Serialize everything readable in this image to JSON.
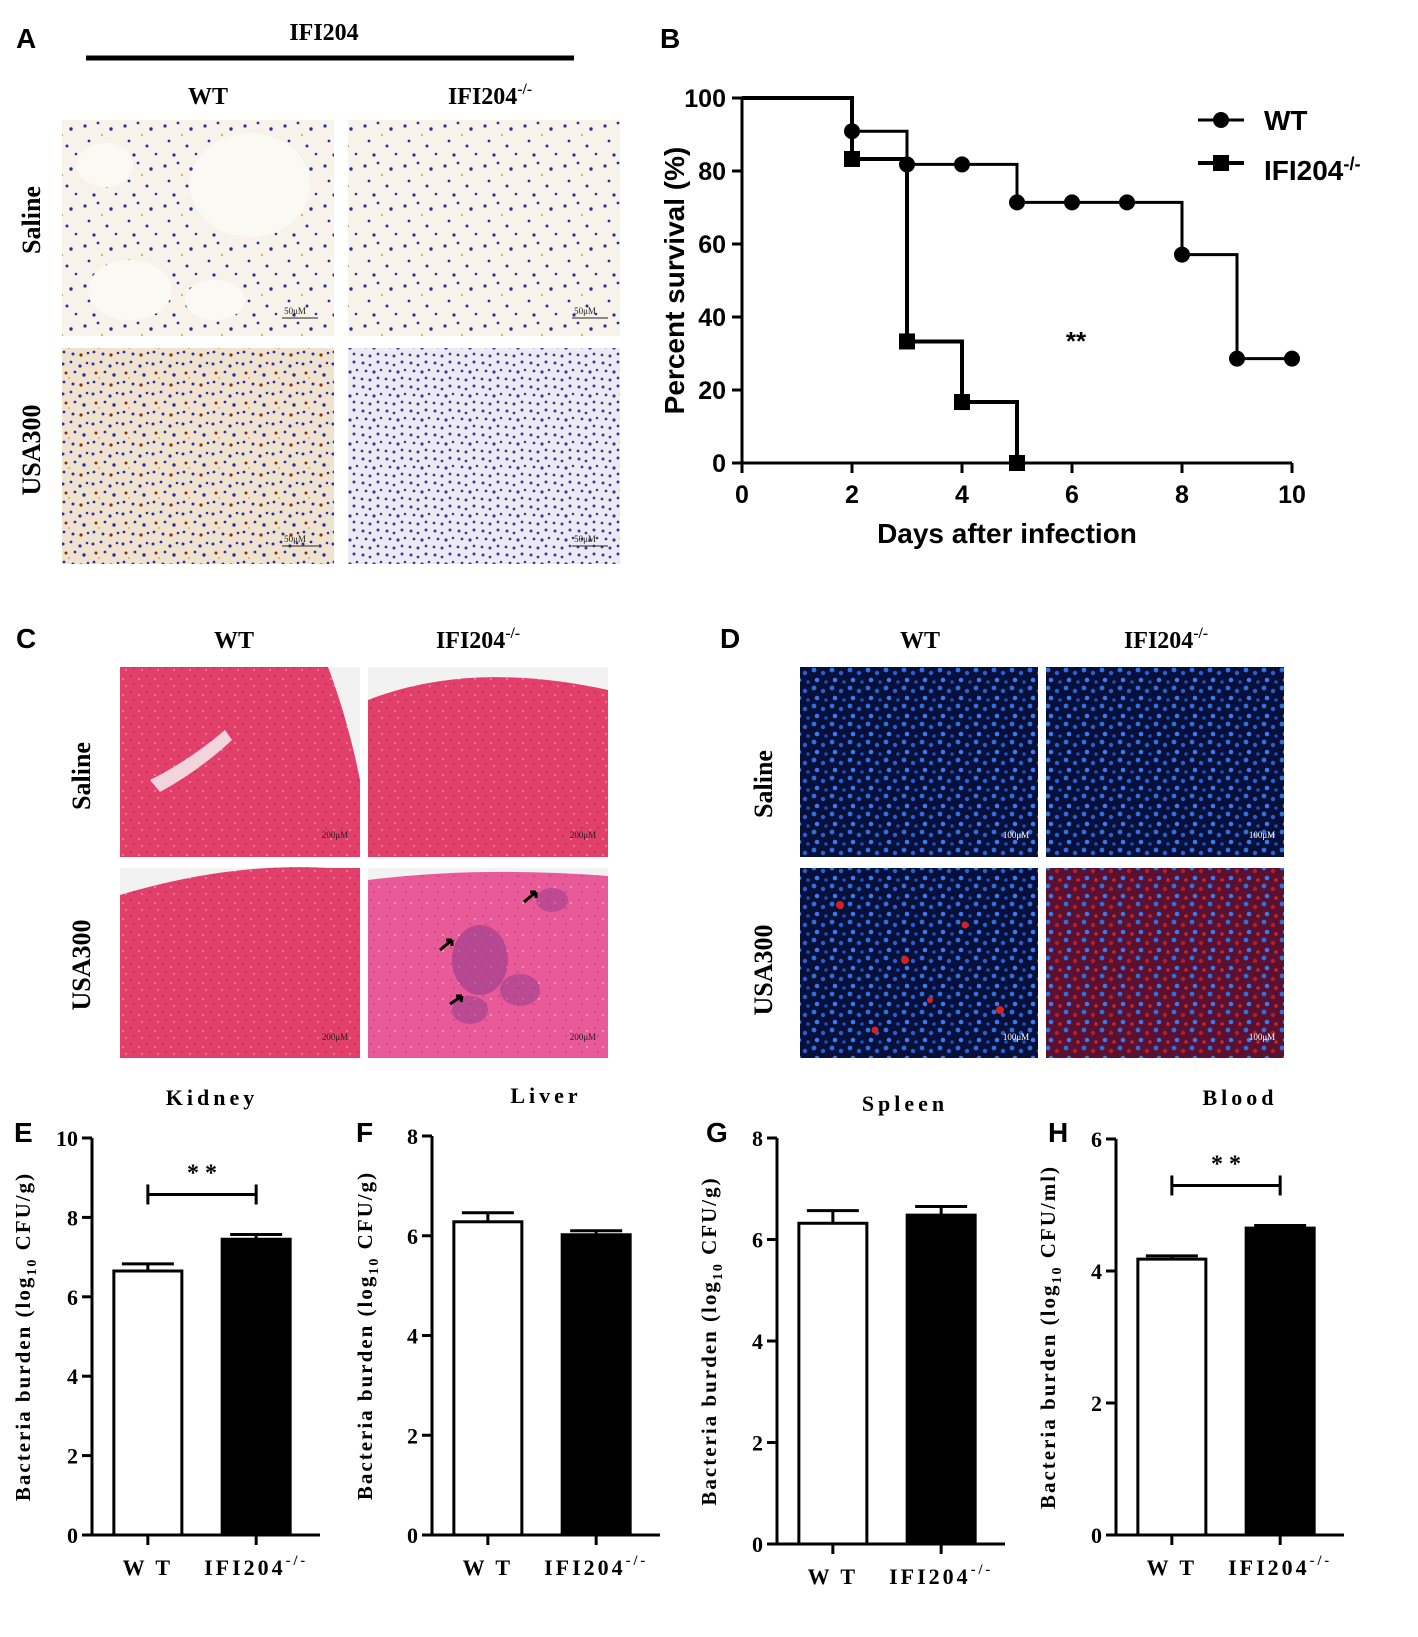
{
  "panels": {
    "A": {
      "letter": "A",
      "header": "IFI204",
      "col_labels": [
        "WT",
        "IFI204-/-"
      ],
      "row_labels": [
        "Saline",
        "USA300"
      ],
      "scale_bar": "50μM"
    },
    "C": {
      "letter": "C",
      "col_labels": [
        "WT",
        "IFI204-/-"
      ],
      "row_labels": [
        "Saline",
        "USA300"
      ],
      "scale_bar": "200μM"
    },
    "D": {
      "letter": "D",
      "col_labels": [
        "WT",
        "IFI204-/-"
      ],
      "row_labels": [
        "Saline",
        "USA300"
      ],
      "scale_bar": "100μM"
    }
  },
  "colors": {
    "ihc_background": "#f5f0e6",
    "ihc_nuclei": "#2b2fa0",
    "ihc_stain": "#8a2a10",
    "he_tissue": "#e2406a",
    "he_lesion": "#8c3a8c",
    "if_background": "#050a2a",
    "if_nuclei": "#2f6fe0",
    "if_signal": "#d8201e"
  },
  "chart_data": [
    {
      "panel": "B",
      "type": "line",
      "step": true,
      "xlabel": "Days after infection",
      "ylabel": "Percent survival (%)",
      "xlim": [
        0,
        10
      ],
      "ylim": [
        0,
        100
      ],
      "xticks": [
        0,
        2,
        4,
        6,
        8,
        10
      ],
      "yticks": [
        0,
        20,
        40,
        60,
        80,
        100
      ],
      "annotation": "**",
      "legend_position": "top-right",
      "series": [
        {
          "name": "WT",
          "marker": "circle",
          "steps": [
            [
              0,
              100
            ],
            [
              2,
              100
            ],
            [
              2,
              90.9
            ],
            [
              3,
              90.9
            ],
            [
              3,
              81.8
            ],
            [
              5,
              81.8
            ],
            [
              5,
              71.4
            ],
            [
              8,
              71.4
            ],
            [
              8,
              57.1
            ],
            [
              9,
              57.1
            ],
            [
              9,
              28.6
            ],
            [
              10,
              28.6
            ]
          ],
          "markers": [
            [
              2,
              90.9
            ],
            [
              3,
              81.8
            ],
            [
              4,
              81.8
            ],
            [
              5,
              71.4
            ],
            [
              6,
              71.4
            ],
            [
              7,
              71.4
            ],
            [
              8,
              57.1
            ],
            [
              9,
              28.6
            ],
            [
              10,
              28.6
            ]
          ]
        },
        {
          "name": "IFI204-/-",
          "marker": "square",
          "steps": [
            [
              0,
              100
            ],
            [
              2,
              100
            ],
            [
              2,
              83.3
            ],
            [
              3,
              83.3
            ],
            [
              3,
              33.3
            ],
            [
              4,
              33.3
            ],
            [
              4,
              16.7
            ],
            [
              5,
              16.7
            ],
            [
              5,
              0
            ]
          ],
          "markers": [
            [
              2,
              83.3
            ],
            [
              3,
              33.3
            ],
            [
              4,
              16.7
            ],
            [
              5,
              0
            ]
          ]
        }
      ]
    },
    {
      "panel": "E",
      "type": "bar",
      "title": "Kidney",
      "ylabel": "Bacteria burden (log10 CFU/g)",
      "categories": [
        "W T",
        "IFI204-/-"
      ],
      "values": [
        6.65,
        7.45
      ],
      "errors": [
        0.18,
        0.12
      ],
      "fills": [
        "#ffffff",
        "#000000"
      ],
      "ylim": [
        0,
        10
      ],
      "yticks": [
        0,
        2,
        4,
        6,
        8,
        10
      ],
      "significance": "* *"
    },
    {
      "panel": "F",
      "type": "bar",
      "title": "Liver",
      "ylabel": "Bacteria burden (log10 CFU/g)",
      "categories": [
        "W T",
        "IFI204-/-"
      ],
      "values": [
        6.28,
        6.02
      ],
      "errors": [
        0.18,
        0.08
      ],
      "fills": [
        "#ffffff",
        "#000000"
      ],
      "ylim": [
        0,
        8
      ],
      "yticks": [
        0,
        2,
        4,
        6,
        8
      ],
      "significance": ""
    },
    {
      "panel": "G",
      "type": "bar",
      "title": "Spleen",
      "ylabel": "Bacteria burden (log10 CFU/g)",
      "categories": [
        "W T",
        "IFI204-/-"
      ],
      "values": [
        6.32,
        6.48
      ],
      "errors": [
        0.25,
        0.17
      ],
      "fills": [
        "#ffffff",
        "#000000"
      ],
      "ylim": [
        0,
        8
      ],
      "yticks": [
        0,
        2,
        4,
        6,
        8
      ],
      "significance": ""
    },
    {
      "panel": "H",
      "type": "bar",
      "title": "Blood",
      "ylabel": "Bacteria burden (log10 CFU/ml)",
      "categories": [
        "W T",
        "IFI204-/-"
      ],
      "values": [
        4.18,
        4.65
      ],
      "errors": [
        0.05,
        0.04
      ],
      "fills": [
        "#ffffff",
        "#000000"
      ],
      "ylim": [
        0,
        6
      ],
      "yticks": [
        0,
        2,
        4,
        6
      ],
      "significance": "* *"
    }
  ]
}
